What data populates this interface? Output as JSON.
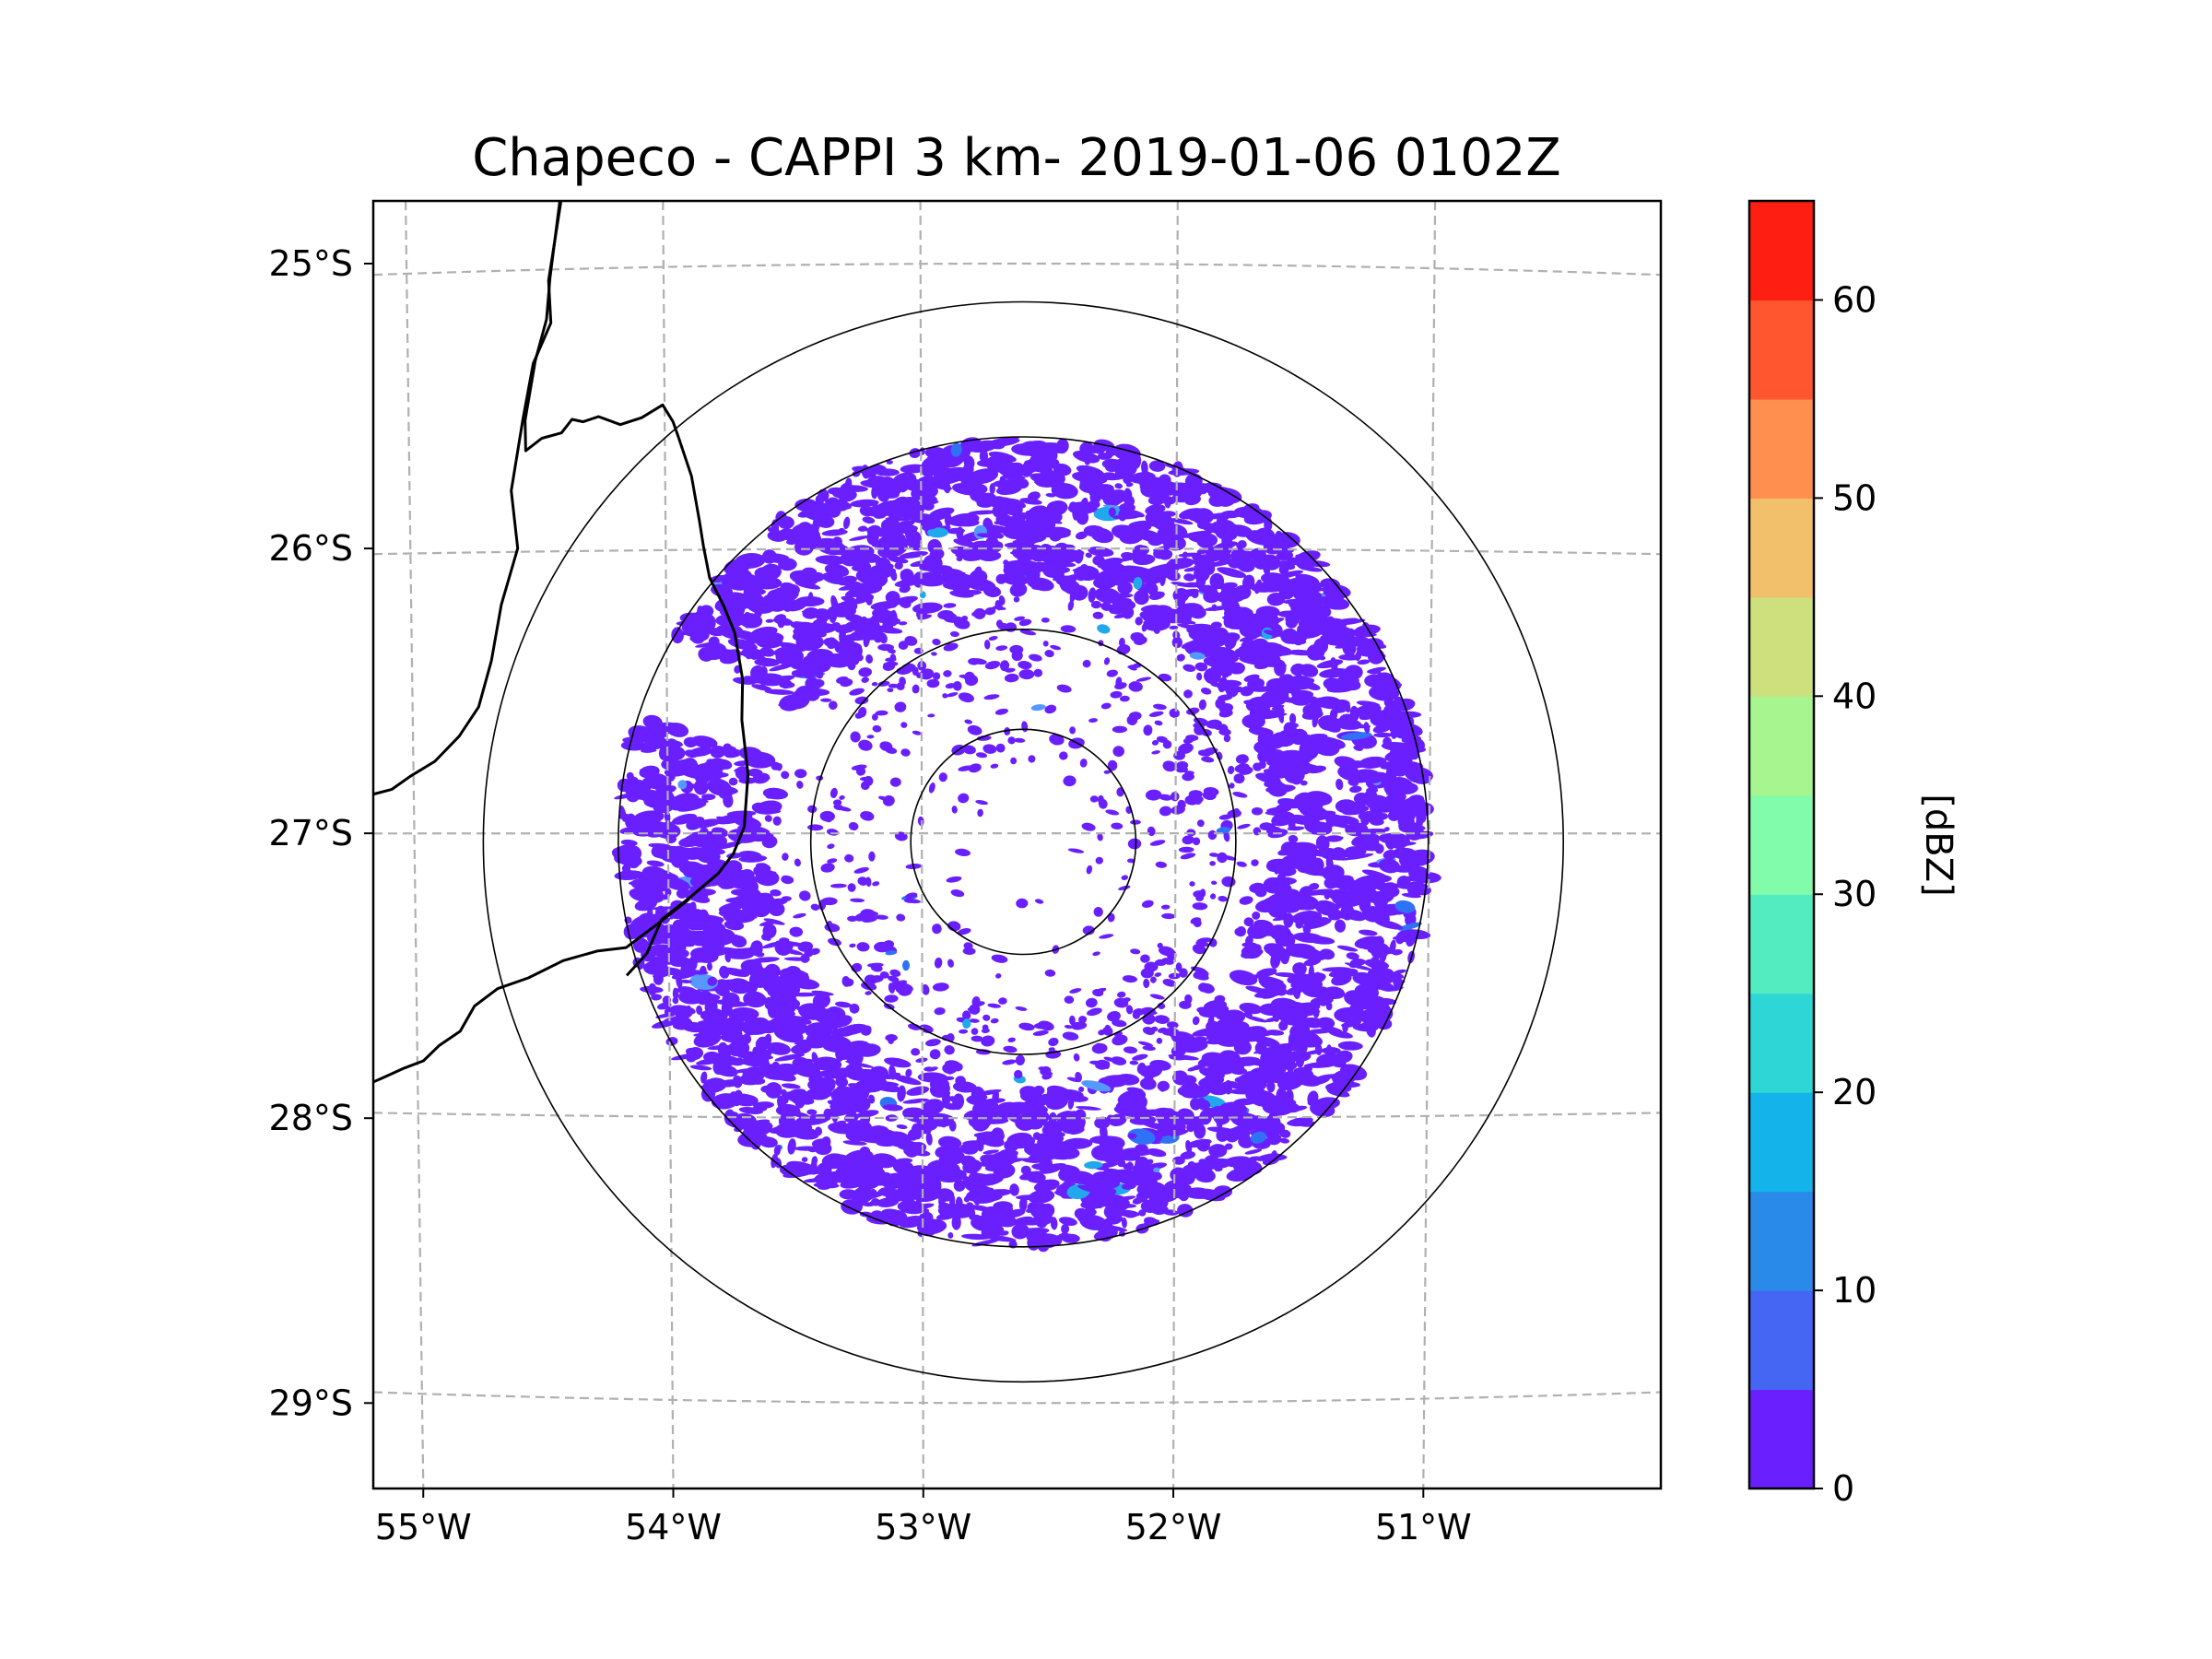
{
  "chart_data": {
    "type": "heatmap",
    "subtype": "radar-ppi-map",
    "title": "Chapeco - CAPPI 3 km- 2019-01-06 0102Z",
    "projection": "lat-lon map",
    "xlim": [
      -55.2,
      -50.05
    ],
    "ylim": [
      -29.3,
      -24.78
    ],
    "x_ticks": [
      {
        "value": -55,
        "label": "55°W"
      },
      {
        "value": -54,
        "label": "54°W"
      },
      {
        "value": -53,
        "label": "53°W"
      },
      {
        "value": -52,
        "label": "52°W"
      },
      {
        "value": -51,
        "label": "51°W"
      }
    ],
    "y_ticks": [
      {
        "value": -25,
        "label": "25°S"
      },
      {
        "value": -26,
        "label": "26°S"
      },
      {
        "value": -27,
        "label": "27°S"
      },
      {
        "value": -28,
        "label": "28°S"
      },
      {
        "value": -29,
        "label": "29°S"
      }
    ],
    "grid": "dashed lat/lon gridlines",
    "radar": {
      "name": "Chapeco",
      "center_lon": -52.6,
      "center_lat": -27.03,
      "range_rings_deg": [
        0.45,
        0.85,
        1.62,
        2.16
      ],
      "echo_outer_radius_deg": 1.62,
      "echo_inner_clear_radius_deg": 0.35,
      "dominant_reflectivity_dbz": "0-5",
      "notes": "Widespread weak echoes (0-5 dBZ) throughout the 1.62-degree ring, sparser toward the center; a few isolated 10-20 dBZ pixels."
    },
    "borders": [
      [
        [
          -54.45,
          -24.78
        ],
        [
          -54.5,
          -25.05
        ],
        [
          -54.5,
          -25.2
        ],
        [
          -54.55,
          -25.35
        ],
        [
          -54.6,
          -25.55
        ],
        [
          -54.58,
          -25.65
        ],
        [
          -54.52,
          -25.62
        ],
        [
          -54.45,
          -25.6
        ],
        [
          -54.4,
          -25.55
        ],
        [
          -54.35,
          -25.55
        ],
        [
          -54.3,
          -25.53
        ],
        [
          -54.22,
          -25.57
        ],
        [
          -54.12,
          -25.55
        ],
        [
          -54.05,
          -25.5
        ],
        [
          -54.0,
          -25.55
        ],
        [
          -53.98,
          -25.62
        ],
        [
          -53.93,
          -25.75
        ],
        [
          -53.9,
          -25.9
        ],
        [
          -53.88,
          -26.0
        ],
        [
          -53.85,
          -26.1
        ],
        [
          -53.8,
          -26.2
        ],
        [
          -53.75,
          -26.3
        ],
        [
          -53.73,
          -26.45
        ],
        [
          -53.72,
          -26.6
        ],
        [
          -53.71,
          -26.8
        ],
        [
          -53.72,
          -26.98
        ],
        [
          -53.75,
          -27.08
        ],
        [
          -53.82,
          -27.15
        ],
        [
          -53.93,
          -27.23
        ],
        [
          -54.05,
          -27.3
        ],
        [
          -54.1,
          -27.43
        ],
        [
          -54.18,
          -27.5
        ]
      ],
      [
        [
          -53.93,
          -27.23
        ],
        [
          -54.05,
          -27.3
        ],
        [
          -54.18,
          -27.4
        ],
        [
          -54.3,
          -27.42
        ],
        [
          -54.45,
          -27.45
        ],
        [
          -54.58,
          -27.5
        ],
        [
          -54.7,
          -27.55
        ],
        [
          -54.8,
          -27.6
        ],
        [
          -54.85,
          -27.7
        ],
        [
          -54.93,
          -27.75
        ],
        [
          -55.0,
          -27.8
        ],
        [
          -55.08,
          -27.83
        ],
        [
          -55.15,
          -27.85
        ],
        [
          -55.2,
          -27.88
        ]
      ],
      [
        [
          -54.45,
          -24.78
        ],
        [
          -54.5,
          -25.05
        ],
        [
          -54.5,
          -25.2
        ],
        [
          -54.55,
          -25.35
        ],
        [
          -54.6,
          -25.55
        ],
        [
          -54.65,
          -25.8
        ],
        [
          -54.63,
          -26.0
        ],
        [
          -54.68,
          -26.2
        ],
        [
          -54.72,
          -26.4
        ],
        [
          -54.78,
          -26.55
        ],
        [
          -54.85,
          -26.65
        ],
        [
          -54.95,
          -26.75
        ],
        [
          -55.05,
          -26.8
        ],
        [
          -55.12,
          -26.85
        ],
        [
          -55.2,
          -26.87
        ]
      ]
    ],
    "colorbar": {
      "label": "[dBZ]",
      "range": [
        0,
        65
      ],
      "step": 5,
      "tick_labels": [
        "0",
        "10",
        "20",
        "30",
        "40",
        "50",
        "60"
      ],
      "colors": [
        "#6a1fff",
        "#4466f2",
        "#2a8ae9",
        "#14b3ea",
        "#2ed6d6",
        "#52ecc0",
        "#80fcab",
        "#a6f58e",
        "#cde07d",
        "#f2c06a",
        "#ff8f4f",
        "#ff5630",
        "#ff1f12"
      ]
    },
    "echo_color": "#6a1fff",
    "accent_colors": [
      "#2f72f5",
      "#21a8ec",
      "#5599ff"
    ]
  }
}
